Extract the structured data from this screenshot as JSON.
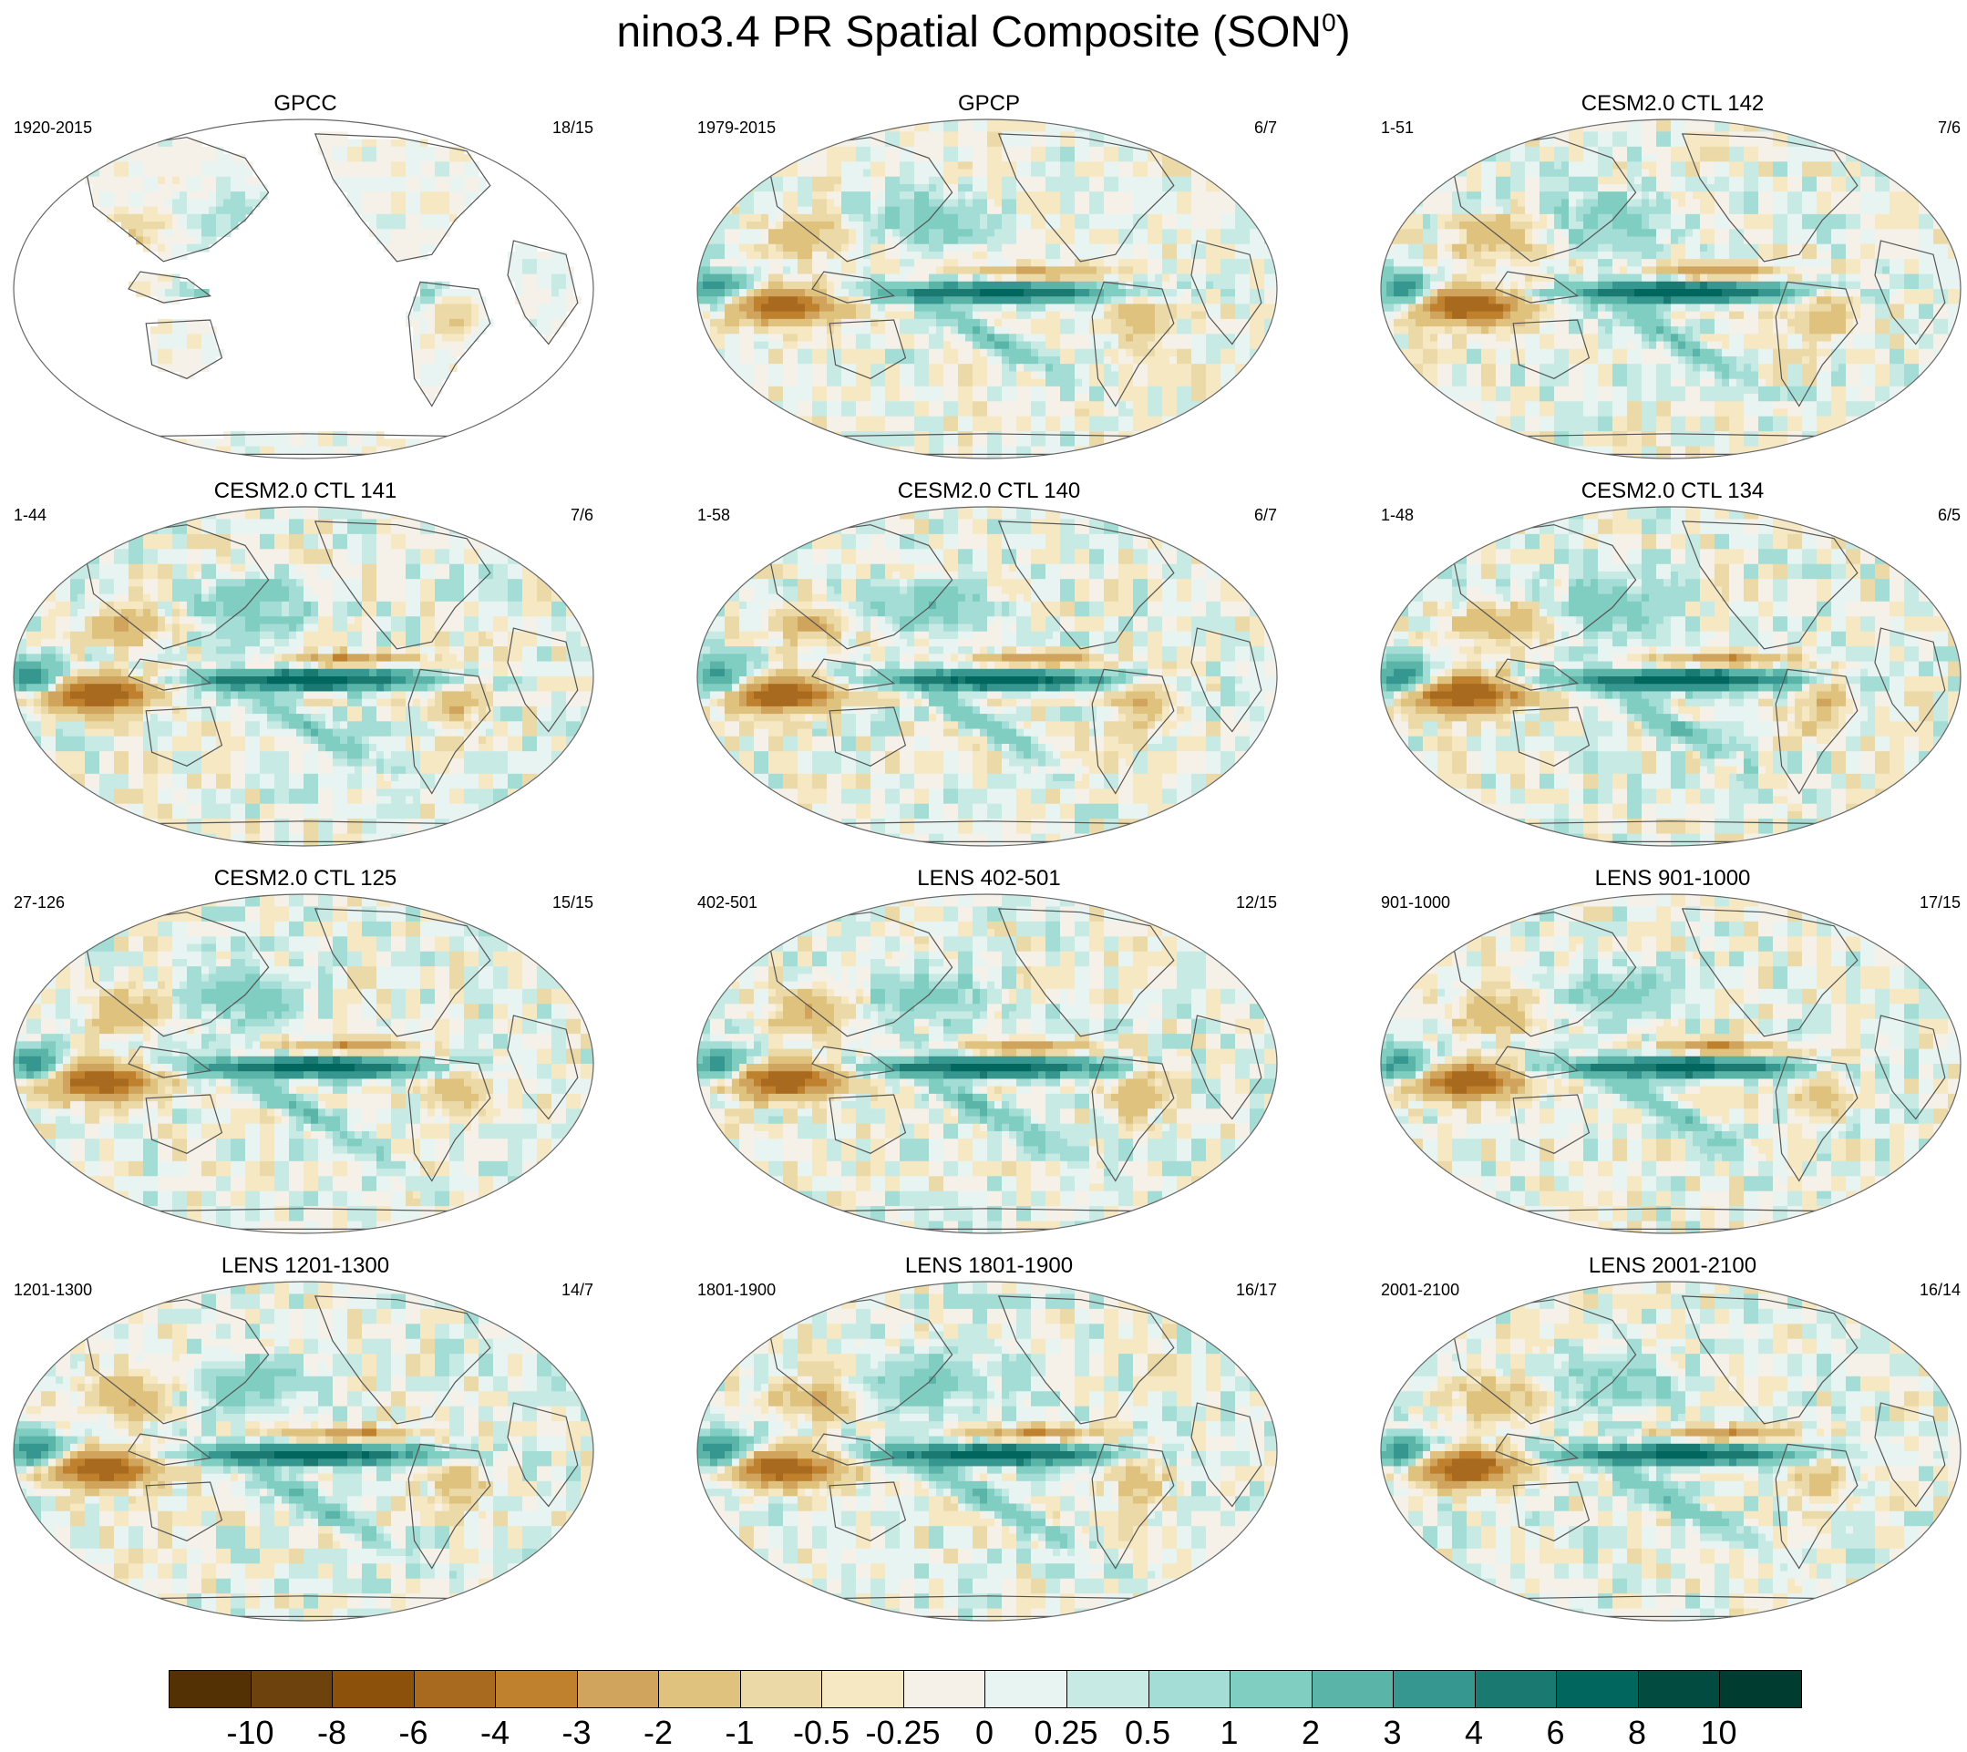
{
  "figure": {
    "title_main": "nino3.4 PR Spatial Composite (SON",
    "title_sup": "0",
    "title_close": ")"
  },
  "panels": [
    {
      "title": "GPCC",
      "years": "1920-2015",
      "count": "18/15",
      "land_only": true,
      "amp": 0.5
    },
    {
      "title": "GPCP",
      "years": "1979-2015",
      "count": "6/7",
      "land_only": false,
      "amp": 0.9
    },
    {
      "title": "CESM2.0 CTL 142",
      "years": "1-51",
      "count": "7/6",
      "land_only": false,
      "amp": 1.0
    },
    {
      "title": "CESM2.0 CTL 141",
      "years": "1-44",
      "count": "7/6",
      "land_only": false,
      "amp": 1.0
    },
    {
      "title": "CESM2.0 CTL 140",
      "years": "1-58",
      "count": "6/7",
      "land_only": false,
      "amp": 1.0
    },
    {
      "title": "CESM2.0 CTL 134",
      "years": "1-48",
      "count": "6/5",
      "land_only": false,
      "amp": 1.05
    },
    {
      "title": "CESM2.0 CTL 125",
      "years": "27-126",
      "count": "15/15",
      "land_only": false,
      "amp": 0.95
    },
    {
      "title": "LENS 402-501",
      "years": "402-501",
      "count": "12/15",
      "land_only": false,
      "amp": 1.0
    },
    {
      "title": "LENS 901-1000",
      "years": "901-1000",
      "count": "17/15",
      "land_only": false,
      "amp": 0.95
    },
    {
      "title": "LENS 1201-1300",
      "years": "1201-1300",
      "count": "14/7",
      "land_only": false,
      "amp": 1.0
    },
    {
      "title": "LENS 1801-1900",
      "years": "1801-1900",
      "count": "16/17",
      "land_only": false,
      "amp": 1.0
    },
    {
      "title": "LENS 2001-2100",
      "years": "2001-2100",
      "count": "16/14",
      "land_only": false,
      "amp": 0.95
    }
  ],
  "colorbar": {
    "colors": [
      "#543005",
      "#6e420c",
      "#8c510a",
      "#a86a1e",
      "#bf812d",
      "#d1a45e",
      "#dfc27d",
      "#ecd9a8",
      "#f6e8c3",
      "#f5f1e8",
      "#e8f4f2",
      "#c7eae5",
      "#a3ddd5",
      "#80cdc1",
      "#5ab4a8",
      "#35978f",
      "#1a7a72",
      "#01665e",
      "#014b40",
      "#003c30"
    ],
    "labels": [
      "-10",
      "-8",
      "-6",
      "-4",
      "-3",
      "-2",
      "-1",
      "-0.5",
      "-0.25",
      "0",
      "0.25",
      "0.5",
      "1",
      "2",
      "3",
      "4",
      "6",
      "8",
      "10"
    ]
  },
  "colors": {
    "land_outline": "#555555",
    "map_border": "#666666"
  }
}
